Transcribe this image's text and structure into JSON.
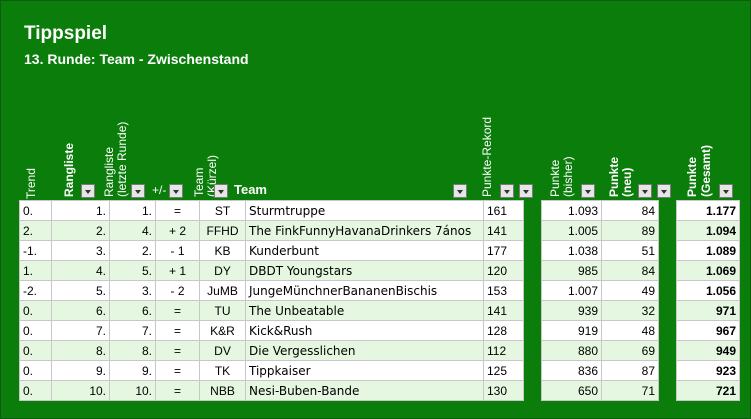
{
  "title": "Tippspiel",
  "subtitle": "13. Runde: Team - Zwischenstand",
  "headers": {
    "trend": "Trend",
    "rangliste": "Rangliste",
    "rangliste_last_1": "Rangliste",
    "rangliste_last_2": "(letzte Runde)",
    "plusminus": "+/-",
    "team_short_1": "Team",
    "team_short_2": "(Kürzel)",
    "team": "Team",
    "rekord": "Punkte-Rekord",
    "bisher_1": "Punkte",
    "bisher_2": "(bisher)",
    "neu_1": "Punkte",
    "neu_2": "(neu)",
    "gesamt_1": "Punkte",
    "gesamt_2": "(Gesamt)"
  },
  "rows": [
    {
      "trend": "0.",
      "rang": "1.",
      "rang_last": "1.",
      "pm": "=",
      "short": "ST",
      "team": "Sturmtruppe",
      "rekord": "161",
      "bisher": "1.093",
      "neu": "84",
      "gesamt": "1.177"
    },
    {
      "trend": "2.",
      "rang": "2.",
      "rang_last": "4.",
      "pm": "+ 2",
      "short": "FFHD",
      "team": "The FinkFunnyHavanaDrinkers 7ános",
      "rekord": "141",
      "bisher": "1.005",
      "neu": "89",
      "gesamt": "1.094"
    },
    {
      "trend": "-1.",
      "rang": "3.",
      "rang_last": "2.",
      "pm": "- 1",
      "short": "KB",
      "team": "Kunderbunt",
      "rekord": "177",
      "bisher": "1.038",
      "neu": "51",
      "gesamt": "1.089"
    },
    {
      "trend": "1.",
      "rang": "4.",
      "rang_last": "5.",
      "pm": "+ 1",
      "short": "DY",
      "team": "DBDT Youngstars",
      "rekord": "120",
      "bisher": "985",
      "neu": "84",
      "gesamt": "1.069"
    },
    {
      "trend": "-2.",
      "rang": "5.",
      "rang_last": "3.",
      "pm": "- 2",
      "short": "JuMB",
      "team": "JungeMünchnerBananenBischis",
      "rekord": "153",
      "bisher": "1.007",
      "neu": "49",
      "gesamt": "1.056"
    },
    {
      "trend": "0.",
      "rang": "6.",
      "rang_last": "6.",
      "pm": "=",
      "short": "TU",
      "team": "The Unbeatable",
      "rekord": "141",
      "bisher": "939",
      "neu": "32",
      "gesamt": "971"
    },
    {
      "trend": "0.",
      "rang": "7.",
      "rang_last": "7.",
      "pm": "=",
      "short": "K&R",
      "team": "Kick&Rush",
      "rekord": "128",
      "bisher": "919",
      "neu": "48",
      "gesamt": "967"
    },
    {
      "trend": "0.",
      "rang": "8.",
      "rang_last": "8.",
      "pm": "=",
      "short": "DV",
      "team": "Die Vergesslichen",
      "rekord": "112",
      "bisher": "880",
      "neu": "69",
      "gesamt": "949"
    },
    {
      "trend": "0.",
      "rang": "9.",
      "rang_last": "9.",
      "pm": "=",
      "short": "TK",
      "team": "Tippkaiser",
      "rekord": "125",
      "bisher": "836",
      "neu": "87",
      "gesamt": "923"
    },
    {
      "trend": "0.",
      "rang": "10.",
      "rang_last": "10.",
      "pm": "=",
      "short": "NBB",
      "team": "Nesi-Buben-Bande",
      "rekord": "130",
      "bisher": "650",
      "neu": "71",
      "gesamt": "721"
    }
  ],
  "colors": {
    "background": "#0b7d0b",
    "row_alt": "#e5f7e0",
    "text_header": "#ffffff"
  }
}
